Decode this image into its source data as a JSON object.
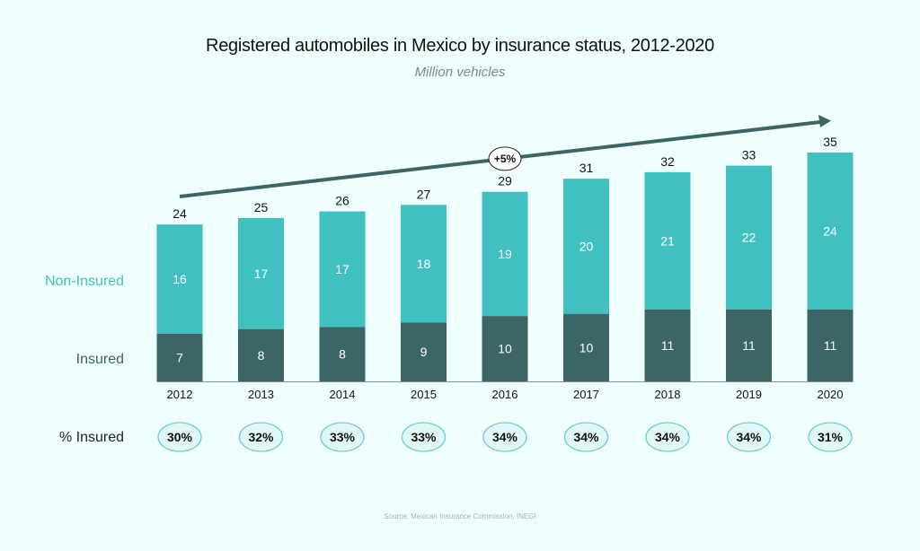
{
  "chart_data": {
    "type": "bar",
    "stacked": true,
    "title": "Registered automobiles in Mexico by insurance status, 2012-2020",
    "subtitle": "Million vehicles",
    "categories": [
      "2012",
      "2013",
      "2014",
      "2015",
      "2016",
      "2017",
      "2018",
      "2019",
      "2020"
    ],
    "series": [
      {
        "name": "Insured",
        "color": "#3b6665",
        "values": [
          7,
          8,
          8,
          9,
          10,
          10,
          11,
          11,
          11
        ]
      },
      {
        "name": "Non-Insured",
        "color": "#41c0c1",
        "values": [
          16,
          17,
          17,
          18,
          19,
          20,
          21,
          22,
          24
        ]
      }
    ],
    "totals": [
      24,
      25,
      26,
      27,
      29,
      31,
      32,
      33,
      35
    ],
    "row_labels": {
      "non_insured": "Non-Insured",
      "insured": "Insured",
      "pct": "% Insured"
    },
    "pct_insured_label": "% Insured",
    "pct_insured": [
      "30%",
      "32%",
      "33%",
      "33%",
      "34%",
      "34%",
      "34%",
      "34%",
      "31%"
    ],
    "trend_annotation": "+5%",
    "ylim": [
      0,
      35
    ],
    "grid": false,
    "legend": "left",
    "source": "Source: Mexican Insurance Commission, INEGI",
    "colors": {
      "non_insured_label": "#41c0c1",
      "insured_label": "#3b6665",
      "trend_arrow": "#3b6665",
      "pct_ellipse_stroke": "#6fcfd0",
      "pct_ellipse_fill": "#e0f7f6"
    }
  }
}
